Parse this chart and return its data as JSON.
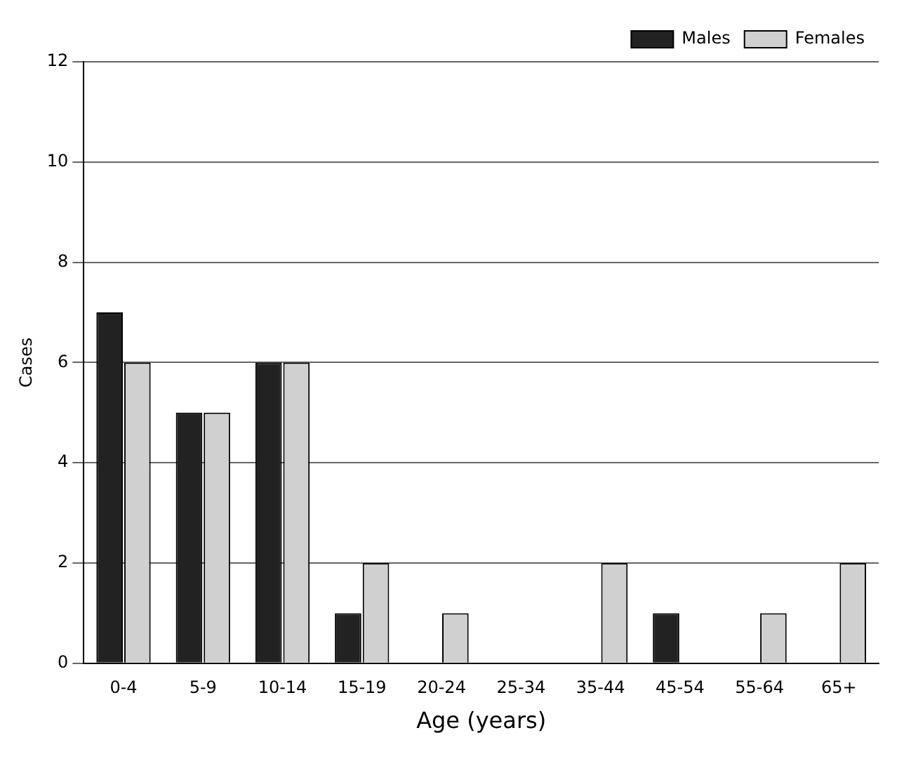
{
  "chart_data": {
    "type": "bar",
    "ylabel": "Cases",
    "xlabel": "Age (years)",
    "categories": [
      "0-4",
      "5-9",
      "10-14",
      "15-19",
      "20-24",
      "25-34",
      "35-44",
      "45-54",
      "55-64",
      "65+"
    ],
    "series": [
      {
        "name": "Males",
        "color": "#222222",
        "values": [
          7,
          5,
          6,
          1,
          0,
          0,
          0,
          1,
          0,
          0
        ]
      },
      {
        "name": "Females",
        "color": "#d0d0d0",
        "values": [
          6,
          5,
          6,
          2,
          1,
          0,
          2,
          0,
          1,
          2
        ]
      }
    ],
    "ylim": [
      0,
      12
    ],
    "yticks": [
      0,
      2,
      4,
      6,
      8,
      10,
      12
    ],
    "grid": "y",
    "legend": "top right"
  }
}
